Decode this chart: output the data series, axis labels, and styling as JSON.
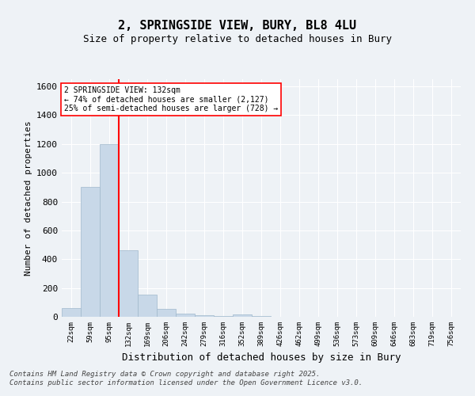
{
  "title_line1": "2, SPRINGSIDE VIEW, BURY, BL8 4LU",
  "title_line2": "Size of property relative to detached houses in Bury",
  "xlabel": "Distribution of detached houses by size in Bury",
  "ylabel": "Number of detached properties",
  "categories": [
    "22sqm",
    "59sqm",
    "95sqm",
    "132sqm",
    "169sqm",
    "206sqm",
    "242sqm",
    "279sqm",
    "316sqm",
    "352sqm",
    "389sqm",
    "426sqm",
    "462sqm",
    "499sqm",
    "536sqm",
    "573sqm",
    "609sqm",
    "646sqm",
    "683sqm",
    "719sqm",
    "756sqm"
  ],
  "values": [
    60,
    900,
    1200,
    460,
    155,
    55,
    20,
    10,
    5,
    15,
    5,
    0,
    0,
    0,
    0,
    0,
    0,
    0,
    0,
    0,
    0
  ],
  "bar_color": "#c8d8e8",
  "bar_edge_color": "#a0b8cc",
  "red_line_index": 3,
  "annotation_line1": "2 SPRINGSIDE VIEW: 132sqm",
  "annotation_line2": "← 74% of detached houses are smaller (2,127)",
  "annotation_line3": "25% of semi-detached houses are larger (728) →",
  "ylim": [
    0,
    1650
  ],
  "yticks": [
    0,
    200,
    400,
    600,
    800,
    1000,
    1200,
    1400,
    1600
  ],
  "background_color": "#eef2f6",
  "plot_bg_color": "#eef2f6",
  "footer_line1": "Contains HM Land Registry data © Crown copyright and database right 2025.",
  "footer_line2": "Contains public sector information licensed under the Open Government Licence v3.0."
}
